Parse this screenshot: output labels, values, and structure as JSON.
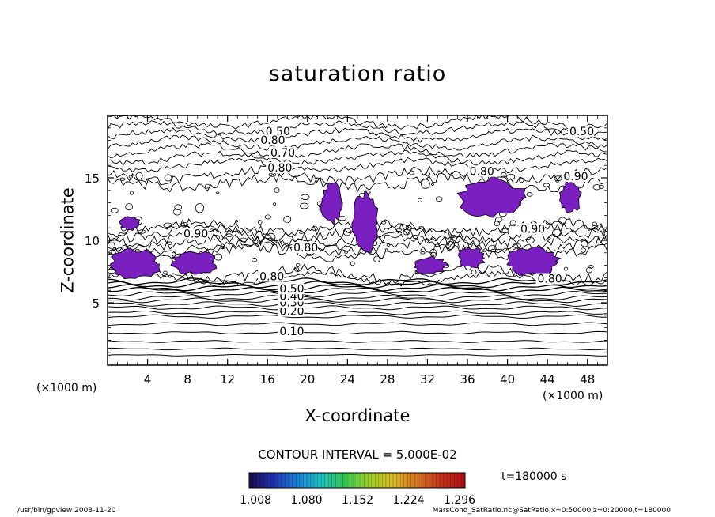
{
  "chart_data": {
    "type": "contour",
    "title": "saturation ratio",
    "xlabel": "X-coordinate",
    "ylabel": "Z-coordinate",
    "x_unit": "(×1000 m)",
    "y_unit": "(×1000 m)",
    "xlim": [
      0,
      50
    ],
    "ylim": [
      0,
      20
    ],
    "x_ticks": [
      4,
      8,
      12,
      16,
      20,
      24,
      28,
      32,
      36,
      40,
      44,
      48
    ],
    "y_ticks": [
      5,
      10,
      15
    ],
    "contour_labels": [
      {
        "x": 17.2,
        "z": 2.6,
        "text": "0.10"
      },
      {
        "x": 17.2,
        "z": 4.2,
        "text": "0.20"
      },
      {
        "x": 17.2,
        "z": 4.9,
        "text": "0.30"
      },
      {
        "x": 17.2,
        "z": 5.4,
        "text": "0.40"
      },
      {
        "x": 17.2,
        "z": 6.0,
        "text": "0.50"
      },
      {
        "x": 15.2,
        "z": 7.0,
        "text": "0.80"
      },
      {
        "x": 7.6,
        "z": 10.4,
        "text": "0.90"
      },
      {
        "x": 18.6,
        "z": 9.3,
        "text": "0.80"
      },
      {
        "x": 41.3,
        "z": 10.8,
        "text": "0.90"
      },
      {
        "x": 15.8,
        "z": 18.6,
        "text": "0.50"
      },
      {
        "x": 15.3,
        "z": 17.9,
        "text": "0.80"
      },
      {
        "x": 16.3,
        "z": 16.9,
        "text": "0.70"
      },
      {
        "x": 16.0,
        "z": 15.7,
        "text": "0.80"
      },
      {
        "x": 46.2,
        "z": 18.6,
        "text": "0.50"
      },
      {
        "x": 36.2,
        "z": 15.4,
        "text": "0.80"
      },
      {
        "x": 45.6,
        "z": 15.0,
        "text": "0.90"
      },
      {
        "x": 43.0,
        "z": 6.8,
        "text": "0.80"
      }
    ],
    "shaded_regions_above": 1.008,
    "shaded_regions": [
      {
        "x": 2.8,
        "z": 8.1,
        "rx": 2.4,
        "rz": 1.2
      },
      {
        "x": 8.7,
        "z": 8.2,
        "rx": 2.2,
        "rz": 0.9
      },
      {
        "x": 25.8,
        "z": 11.3,
        "rx": 1.2,
        "rz": 2.5
      },
      {
        "x": 22.4,
        "z": 13.0,
        "rx": 1.0,
        "rz": 1.6
      },
      {
        "x": 38.5,
        "z": 13.4,
        "rx": 3.2,
        "rz": 1.5
      },
      {
        "x": 42.5,
        "z": 8.3,
        "rx": 2.6,
        "rz": 1.1
      },
      {
        "x": 32.2,
        "z": 8.0,
        "rx": 1.6,
        "rz": 0.7
      },
      {
        "x": 36.4,
        "z": 8.6,
        "rx": 1.3,
        "rz": 0.8
      },
      {
        "x": 2.2,
        "z": 11.4,
        "rx": 1.0,
        "rz": 0.5
      },
      {
        "x": 46.3,
        "z": 13.5,
        "rx": 1.0,
        "rz": 1.3
      }
    ],
    "contour_interval_text": "CONTOUR INTERVAL = 5.000E-02",
    "colorbar": {
      "ticks": [
        "1.008",
        "1.080",
        "1.152",
        "1.224",
        "1.296"
      ],
      "colors": [
        "#1a0f4a",
        "#1f2fb0",
        "#1d7fd6",
        "#1fc2c2",
        "#32c24c",
        "#9ed02a",
        "#d8b828",
        "#d27420",
        "#c2321c",
        "#b00f16"
      ]
    },
    "time_label": "t=180000 s",
    "shade_color": "#7a1fc0"
  },
  "footer": {
    "left": "/usr/bin/gpview  2008-11-20",
    "right": "MarsCond_SatRatio.nc@SatRatio,x=0:50000,z=0:20000,t=180000"
  }
}
